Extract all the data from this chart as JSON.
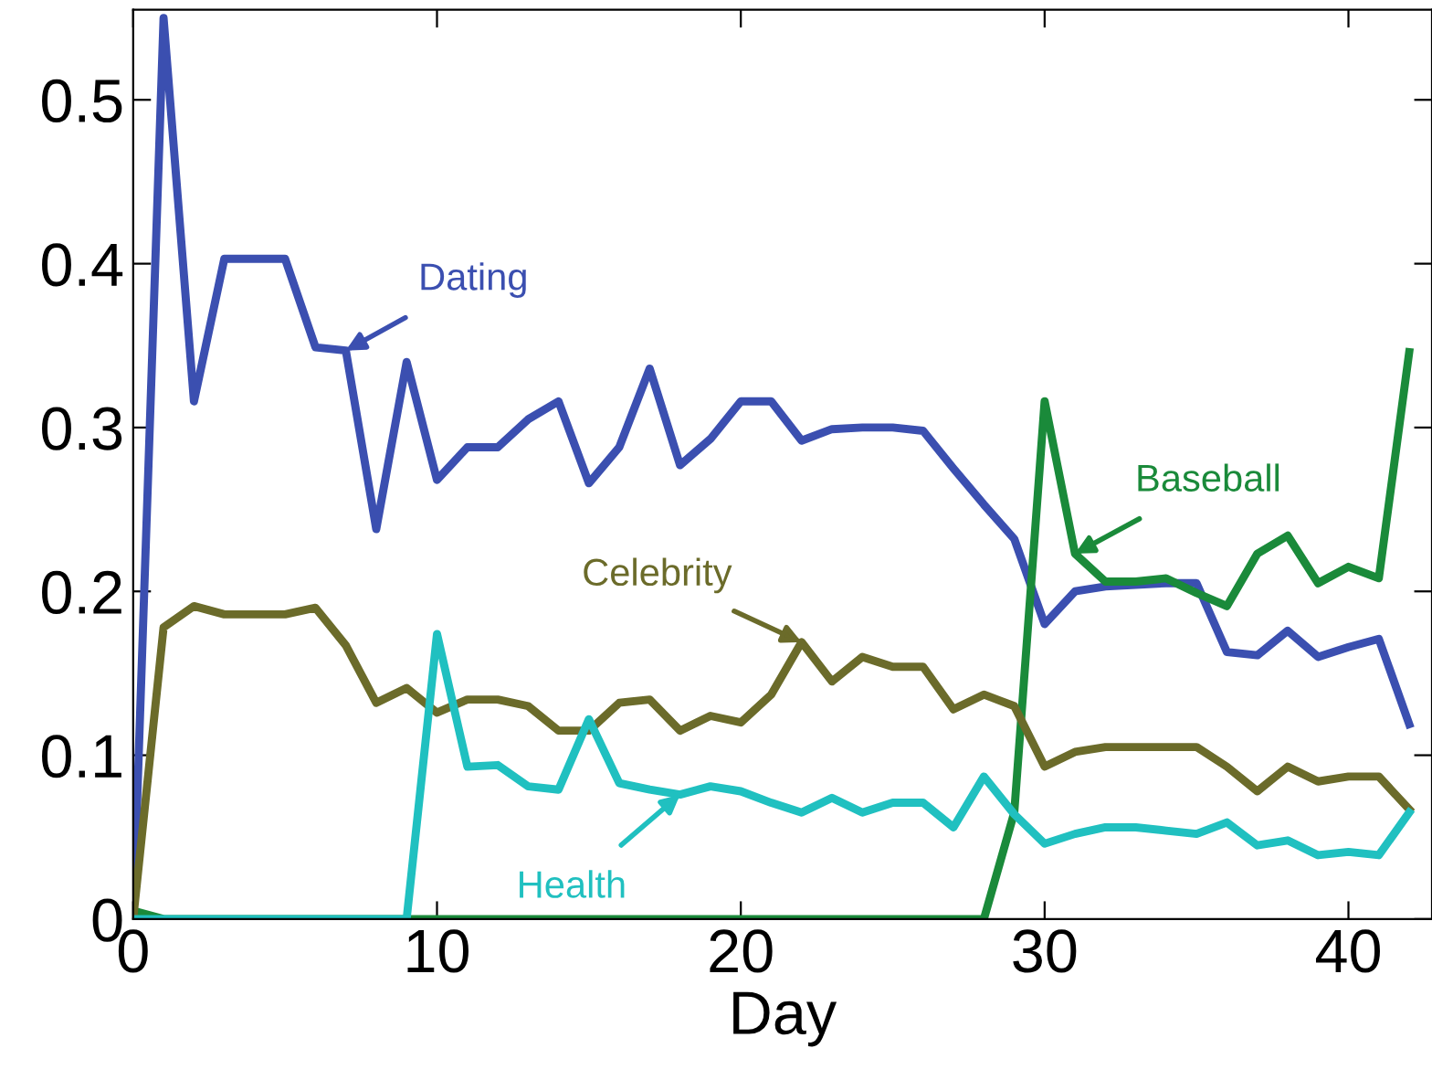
{
  "chart_data": {
    "type": "line",
    "xlabel": "Day",
    "x": [
      0,
      1,
      2,
      3,
      4,
      5,
      6,
      7,
      8,
      9,
      10,
      11,
      12,
      13,
      14,
      15,
      16,
      17,
      18,
      19,
      20,
      21,
      22,
      23,
      24,
      25,
      26,
      27,
      28,
      29,
      30,
      31,
      32,
      33,
      34,
      35,
      36,
      37,
      38,
      39,
      40,
      41,
      42
    ],
    "series": [
      {
        "name": "Dating",
        "color": "#3b4fb0",
        "values": [
          0,
          0.55,
          0.316,
          0.403,
          0.403,
          0.403,
          0.349,
          0.347,
          0.238,
          0.34,
          0.268,
          0.288,
          0.288,
          0.305,
          0.316,
          0.266,
          0.288,
          0.336,
          0.277,
          0.293,
          0.316,
          0.316,
          0.292,
          0.299,
          0.3,
          0.3,
          0.298,
          0.275,
          0.253,
          0.232,
          0.18,
          0.2,
          0.203,
          0.204,
          0.205,
          0.205,
          0.163,
          0.161,
          0.176,
          0.16,
          0.166,
          0.171,
          0.119
        ]
      },
      {
        "name": "Baseball",
        "color": "#1a8a3a",
        "values": [
          0.005,
          0,
          0,
          0,
          0,
          0,
          0,
          0,
          0,
          0,
          0,
          0,
          0,
          0,
          0,
          0,
          0,
          0,
          0,
          0,
          0,
          0,
          0,
          0,
          0,
          0,
          0,
          0,
          0,
          0.065,
          0.316,
          0.223,
          0.206,
          0.206,
          0.208,
          0.199,
          0.191,
          0.223,
          0.234,
          0.205,
          0.215,
          0.208,
          0.346
        ]
      },
      {
        "name": "Celebrity",
        "color": "#6b6b2a",
        "values": [
          0,
          0.178,
          0.191,
          0.186,
          0.186,
          0.186,
          0.19,
          0.167,
          0.132,
          0.141,
          0.126,
          0.134,
          0.134,
          0.13,
          0.115,
          0.115,
          0.132,
          0.134,
          0.115,
          0.124,
          0.12,
          0.137,
          0.169,
          0.145,
          0.16,
          0.154,
          0.154,
          0.128,
          0.137,
          0.13,
          0.093,
          0.102,
          0.105,
          0.105,
          0.105,
          0.105,
          0.093,
          0.078,
          0.093,
          0.084,
          0.087,
          0.087,
          0.067
        ]
      },
      {
        "name": "Health",
        "color": "#20c0c0",
        "values": [
          0,
          0,
          0,
          0,
          0,
          0,
          0,
          0,
          0,
          0,
          0.174,
          0.093,
          0.094,
          0.081,
          0.079,
          0.122,
          0.083,
          0.079,
          0.076,
          0.081,
          0.078,
          0.071,
          0.065,
          0.074,
          0.065,
          0.071,
          0.071,
          0.056,
          0.087,
          0.064,
          0.046,
          0.052,
          0.056,
          0.056,
          0.054,
          0.052,
          0.059,
          0.045,
          0.048,
          0.039,
          0.041,
          0.039,
          0.065
        ]
      }
    ],
    "xlim": [
      0,
      42.75
    ],
    "ylim": [
      0,
      0.555
    ],
    "xticks": [
      0,
      10,
      20,
      30,
      40
    ],
    "yticks": [
      0,
      0.1,
      0.2,
      0.3,
      0.4,
      0.5
    ],
    "marker": "none",
    "line_style": "solid"
  }
}
